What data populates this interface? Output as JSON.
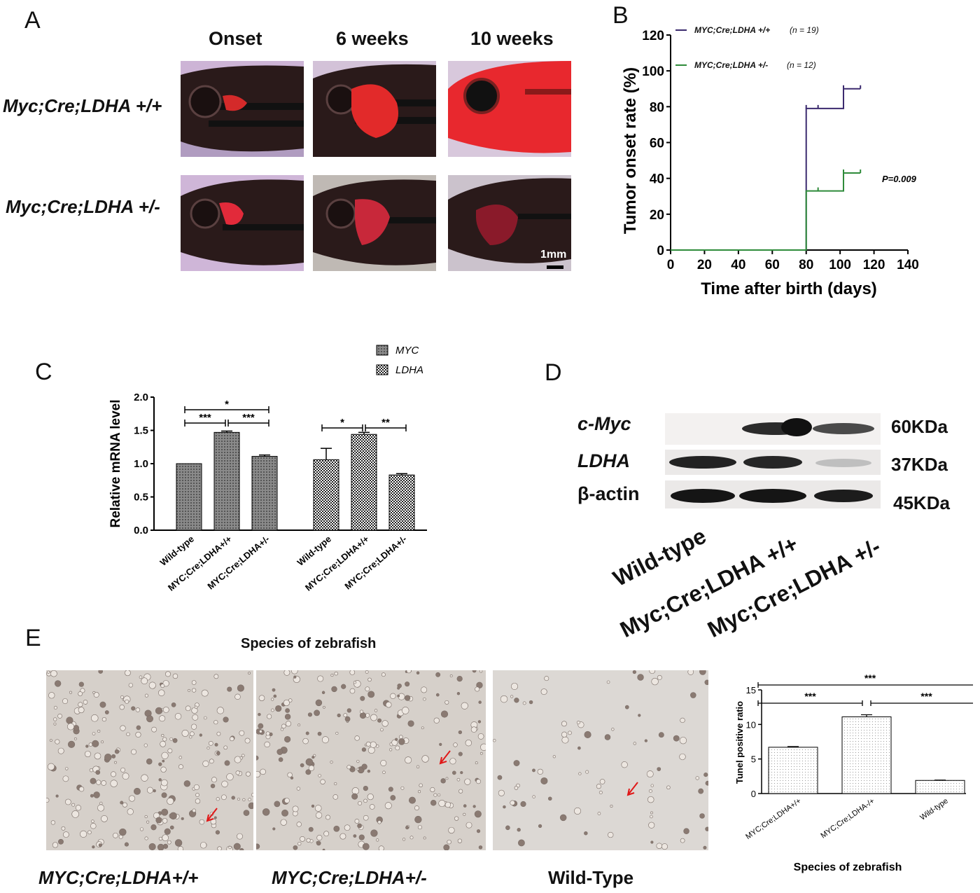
{
  "panel_a": {
    "letter": "A",
    "col_headers": [
      "Onset",
      "6 weeks",
      "10 weeks"
    ],
    "row_labels": [
      "Myc;Cre;LDHA +/+",
      "Myc;Cre;LDHA +/-"
    ],
    "scale_bar": "1mm"
  },
  "panel_b": {
    "letter": "B",
    "p_value": "P=0.009",
    "legend": [
      {
        "label": "MYC;Cre;LDHA +/+",
        "n": "(n = 19)",
        "color": "#3b2a6e"
      },
      {
        "label": "MYC;Cre;LDHA +/-",
        "n": "(n = 12)",
        "color": "#2e8b3a"
      }
    ]
  },
  "panel_c": {
    "letter": "C",
    "legend": [
      {
        "label": "MYC"
      },
      {
        "label": "LDHA"
      }
    ],
    "sig_myc": [
      "***",
      "***",
      "*"
    ],
    "sig_ldha": [
      "*",
      "**"
    ]
  },
  "panel_d": {
    "letter": "D",
    "proteins": [
      "c-Myc",
      "LDHA",
      "β-actin"
    ],
    "sizes": [
      "60KDa",
      "37KDa",
      "45KDa"
    ],
    "lanes": [
      "Wild-type",
      "Myc;Cre;LDHA +/+",
      "Myc;Cre;LDHA +/-"
    ]
  },
  "panel_e": {
    "letter": "E",
    "header": "Species of zebrafish",
    "image_labels": [
      "MYC;Cre;LDHA+/+",
      "MYC;Cre;LDHA+/-",
      "Wild-Type"
    ],
    "sig": [
      "***",
      "***",
      "***"
    ]
  },
  "chart_data": [
    {
      "type": "line",
      "subtype": "step",
      "xlabel": "Time after birth (days)",
      "ylabel": "Tumor onset rate (%)",
      "xlim": [
        0,
        140
      ],
      "ylim": [
        0,
        120
      ],
      "xticks": [
        0,
        20,
        40,
        60,
        80,
        100,
        120,
        140
      ],
      "yticks": [
        0,
        20,
        40,
        60,
        80,
        100,
        120
      ],
      "series": [
        {
          "name": "MYC;Cre;LDHA +/+",
          "x": [
            0,
            80,
            80,
            102,
            102,
            112
          ],
          "y": [
            0,
            0,
            79,
            79,
            90,
            90
          ],
          "censor_x": [
            80,
            87,
            102,
            112
          ],
          "censor_y": [
            79,
            79,
            90,
            90
          ]
        },
        {
          "name": "MYC;Cre;LDHA +/-",
          "x": [
            0,
            80,
            80,
            102,
            102,
            112
          ],
          "y": [
            0,
            0,
            33,
            33,
            43,
            43
          ],
          "censor_x": [
            87,
            102,
            112
          ],
          "censor_y": [
            33,
            43,
            43
          ]
        }
      ]
    },
    {
      "type": "bar",
      "ylabel": "Relative mRNA level",
      "ylim": [
        0,
        2.0
      ],
      "yticks": [
        "0.0",
        "0.5",
        "1.0",
        "1.5",
        "2.0"
      ],
      "categories": [
        "Wild-type",
        "MYC;Cre;LDHA+/+",
        "MYC;Cre;LDHA+/-"
      ],
      "series": [
        {
          "name": "MYC",
          "values": [
            1.0,
            1.47,
            1.11
          ],
          "errors": [
            0.0,
            0.02,
            0.02
          ]
        },
        {
          "name": "LDHA",
          "values": [
            1.06,
            1.44,
            0.83
          ],
          "errors": [
            0.17,
            0.03,
            0.02
          ]
        }
      ]
    },
    {
      "type": "bar",
      "xlabel": "Species of zebrafish",
      "ylabel": "Tunel positive ratio",
      "ylim": [
        0,
        15
      ],
      "yticks": [
        "0",
        "5",
        "10",
        "15"
      ],
      "categories": [
        "MYC;Cre;LDHA+/+",
        "MYC;Cre;LDHA-/+",
        "Wild-type"
      ],
      "values": [
        6.7,
        11.1,
        1.9
      ],
      "errors": [
        0.1,
        0.3,
        0.05
      ]
    }
  ]
}
